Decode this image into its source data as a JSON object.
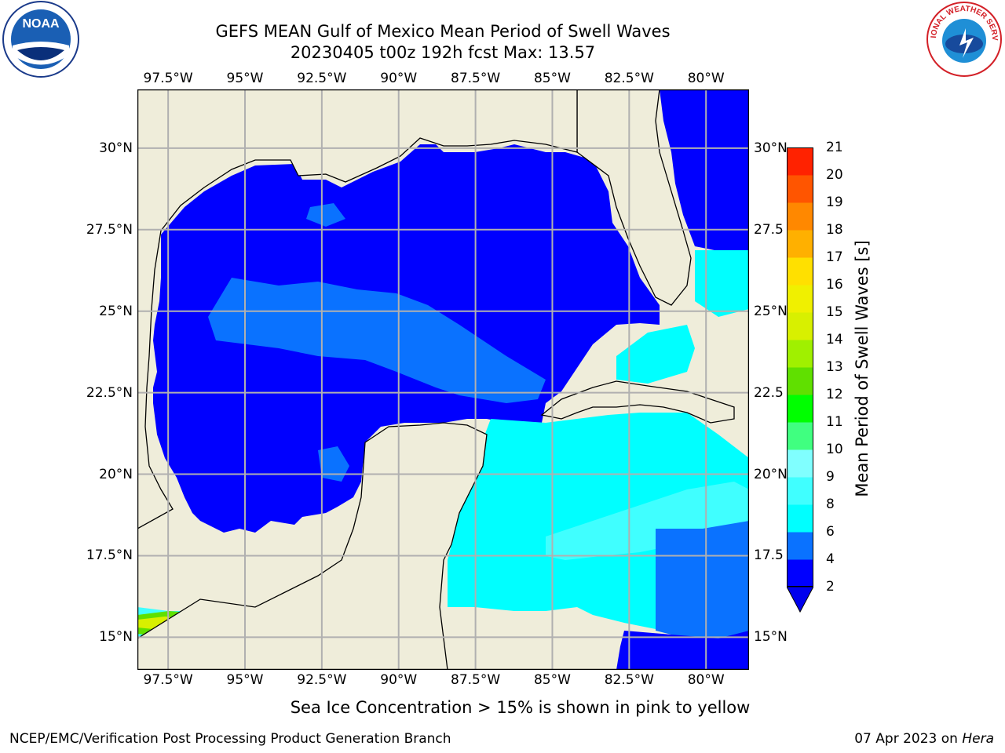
{
  "title": {
    "line1": "GEFS MEAN Gulf of Mexico Mean Period of Swell Waves",
    "line2": "20230405 t00z 192h fcst   Max: 13.57"
  },
  "longitude_labels": [
    "97.5°W",
    "95°W",
    "92.5°W",
    "90°W",
    "87.5°W",
    "85°W",
    "82.5°W",
    "80°W"
  ],
  "latitude_labels": [
    "30°N",
    "27.5°N",
    "25°N",
    "22.5°N",
    "20°N",
    "17.5°N",
    "15°N"
  ],
  "latitude_labels_right": [
    "30°N",
    "27.5",
    "25°N",
    "22.5",
    "20°N",
    "17.5",
    "15°N"
  ],
  "colorbar": {
    "label": "Mean Period of Swell Waves [s]",
    "ticks": [
      "2",
      "4",
      "6",
      "8",
      "9",
      "10",
      "11",
      "12",
      "13",
      "14",
      "15",
      "16",
      "17",
      "18",
      "19",
      "20",
      "21"
    ],
    "colors": [
      "#0000ff",
      "#0a72ff",
      "#00ffff",
      "#40ffff",
      "#80ffff",
      "#40ff80",
      "#00ff00",
      "#60e000",
      "#a0f000",
      "#d8f000",
      "#f0f000",
      "#ffe000",
      "#ffb000",
      "#ff8800",
      "#ff5500",
      "#ff2200",
      "#ff0000"
    ],
    "underflow_color": "#0000ee"
  },
  "map": {
    "land_color": "#efedda",
    "grid_color": "#b0b0b0",
    "extent": {
      "lon_min": -98.5,
      "lon_max": -78.6,
      "lat_min": 14.0,
      "lat_max": 31.8
    },
    "regions": [
      {
        "name": "gulf-deep-blue",
        "color": "#0000ff"
      },
      {
        "name": "central-gulf-medium-blue",
        "color": "#0a72ff"
      },
      {
        "name": "caribbean-cyan",
        "color": "#00ffff"
      },
      {
        "name": "pacific-green-band",
        "color": "#60e000"
      }
    ]
  },
  "caption": "Sea Ice Concentration > 15% is shown in pink to yellow",
  "footer": {
    "left": "NCEP/EMC/Verification Post Processing Product Generation Branch",
    "right_date": "07 Apr 2023 on ",
    "right_host": "Hera"
  },
  "logos": {
    "noaa": "NOAA",
    "nws_text": "NATIONAL WEATHER SERVICE"
  }
}
